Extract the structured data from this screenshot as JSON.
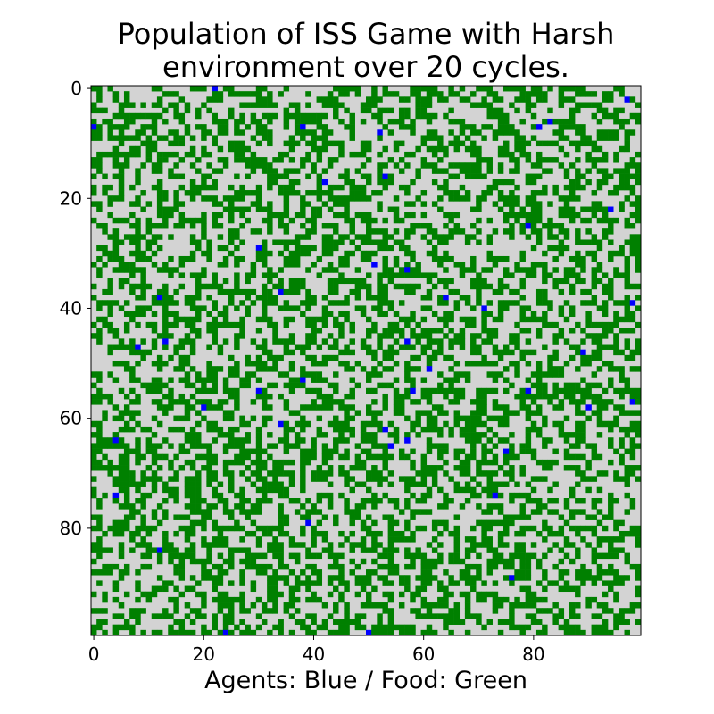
{
  "chart_data": {
    "type": "heatmap",
    "title": [
      "Population of ISS Game with Harsh",
      "environment over 20 cycles."
    ],
    "xlabel": "Agents: Blue / Food: Green",
    "ylabel": "",
    "grid_size": 100,
    "xticks": [
      0,
      20,
      40,
      60,
      80
    ],
    "yticks": [
      0,
      20,
      40,
      60,
      80
    ],
    "xlim": [
      0,
      99
    ],
    "ylim": [
      99,
      0
    ],
    "grid": false,
    "legend": "none",
    "cell_states": [
      "empty",
      "food",
      "agent"
    ],
    "colors": {
      "empty": "#d3d3d3",
      "food": "#008000",
      "agent": "#0000ff",
      "frame": "#000000",
      "text": "#000000"
    },
    "approx_food_fraction": 0.45,
    "agents": [
      [
        22,
        0
      ],
      [
        97,
        2
      ],
      [
        83,
        6
      ],
      [
        81,
        7
      ],
      [
        0,
        7
      ],
      [
        38,
        7
      ],
      [
        52,
        8
      ],
      [
        42,
        17
      ],
      [
        53,
        16
      ],
      [
        94,
        22
      ],
      [
        79,
        25
      ],
      [
        30,
        29
      ],
      [
        51,
        32
      ],
      [
        57,
        33
      ],
      [
        34,
        37
      ],
      [
        12,
        38
      ],
      [
        64,
        38
      ],
      [
        98,
        39
      ],
      [
        71,
        40
      ],
      [
        13,
        46
      ],
      [
        57,
        46
      ],
      [
        8,
        47
      ],
      [
        89,
        48
      ],
      [
        61,
        51
      ],
      [
        38,
        53
      ],
      [
        30,
        55
      ],
      [
        58,
        55
      ],
      [
        79,
        55
      ],
      [
        98,
        57
      ],
      [
        20,
        58
      ],
      [
        90,
        58
      ],
      [
        34,
        61
      ],
      [
        53,
        62
      ],
      [
        4,
        64
      ],
      [
        57,
        64
      ],
      [
        54,
        65
      ],
      [
        75,
        66
      ],
      [
        4,
        74
      ],
      [
        73,
        74
      ],
      [
        39,
        79
      ],
      [
        12,
        84
      ],
      [
        76,
        89
      ],
      [
        24,
        99
      ],
      [
        50,
        99
      ]
    ]
  }
}
